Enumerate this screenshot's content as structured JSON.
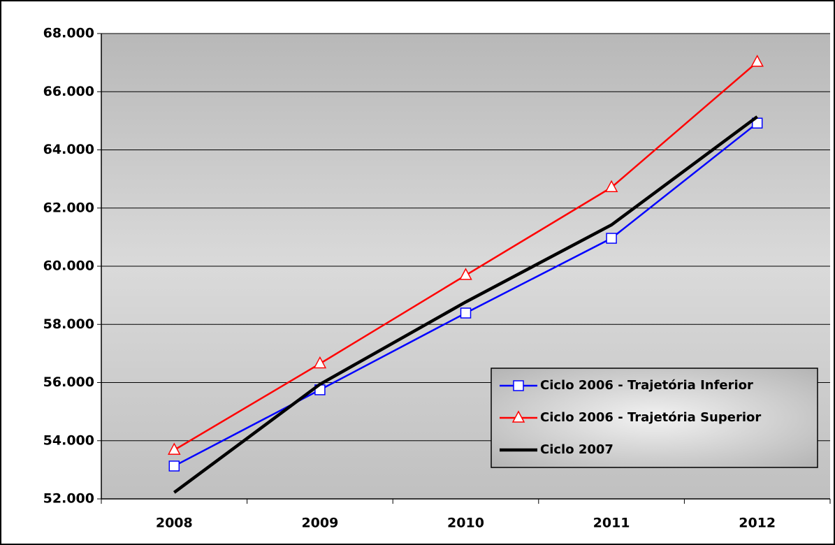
{
  "chart_data": {
    "type": "line",
    "categories": [
      "2008",
      "2009",
      "2010",
      "2011",
      "2012"
    ],
    "series": [
      {
        "name": "Ciclo 2006 - Trajetória Inferior",
        "color": "#0000ff",
        "marker": "square",
        "values": [
          53130,
          55750,
          58390,
          60960,
          64920
        ]
      },
      {
        "name": "Ciclo 2006 - Trajetória Superior",
        "color": "#ff0000",
        "marker": "triangle",
        "values": [
          53680,
          56650,
          59690,
          62710,
          67020
        ]
      },
      {
        "name": "Ciclo 2007",
        "color": "#000000",
        "marker": null,
        "values": [
          52220,
          55940,
          58770,
          61420,
          65140
        ]
      }
    ],
    "ylim": [
      52000,
      68000
    ],
    "yticks": [
      {
        "value": 52000,
        "label": "52.000"
      },
      {
        "value": 54000,
        "label": "54.000"
      },
      {
        "value": 56000,
        "label": "56.000"
      },
      {
        "value": 58000,
        "label": "58.000"
      },
      {
        "value": 60000,
        "label": "60.000"
      },
      {
        "value": 62000,
        "label": "62.000"
      },
      {
        "value": 64000,
        "label": "64.000"
      },
      {
        "value": 66000,
        "label": "66.000"
      },
      {
        "value": 68000,
        "label": "68.000"
      }
    ],
    "grid": true,
    "legend": "lower right"
  }
}
